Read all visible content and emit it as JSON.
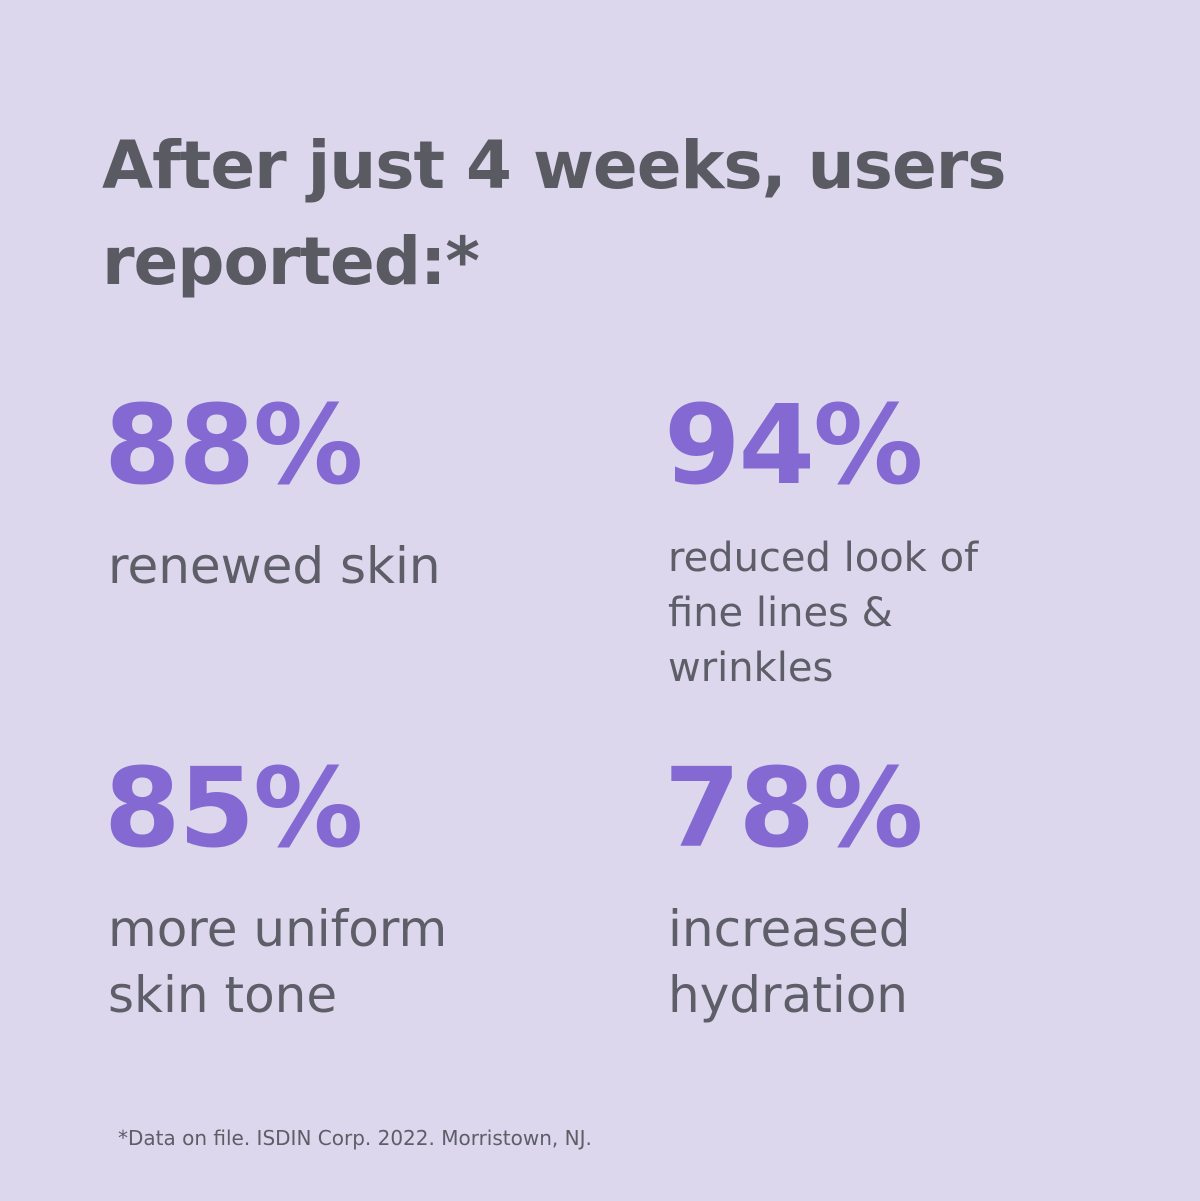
{
  "headline": "After just 4 weeks, users reported:*",
  "stats": [
    {
      "value": "88%",
      "label": "renewed skin"
    },
    {
      "value": "94%",
      "label": "reduced look of\nfine lines &\nwrinkles"
    },
    {
      "value": "85%",
      "label": "more uniform\nskin tone"
    },
    {
      "value": "78%",
      "label": "increased\nhydration"
    }
  ],
  "footnote": "*Data on file. ISDIN Corp. 2022. Morristown, NJ.",
  "colors": {
    "background": "#dcd7ec",
    "accent": "#8469d2",
    "text": "#5a5a62"
  }
}
